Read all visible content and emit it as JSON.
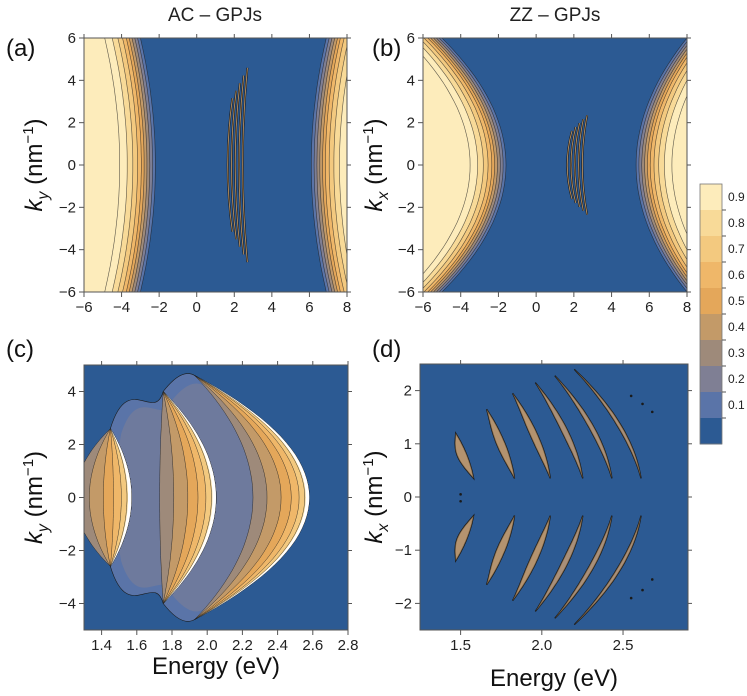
{
  "colors": {
    "background": "#2c5a93",
    "levels": [
      "#2c5a93",
      "#5a74a8",
      "#7f7f94",
      "#9e8a7a",
      "#c39a68",
      "#e4a75a",
      "#efb769",
      "#f3c97f",
      "#f8da98",
      "#fdecbb"
    ],
    "line": "#1a1a1a"
  },
  "chart_data": [
    {
      "panel": "(a)",
      "title": "AC – GPJs",
      "type": "heatmap",
      "xlabel": "",
      "ylabel_base": "k",
      "ylabel_sub": "y",
      "ylabel_unit": " (nm",
      "xlim": [
        -6,
        8
      ],
      "ylim": [
        -6,
        6
      ],
      "xticks": [
        -6,
        -4,
        -2,
        0,
        2,
        4,
        6,
        8
      ],
      "yticks": [
        -6,
        -4,
        -2,
        0,
        2,
        4,
        6
      ],
      "tick_labels_x": [
        "−6",
        "−4",
        "−2",
        "0",
        "2",
        "4",
        "6",
        "8"
      ],
      "tick_labels_y": [
        "−6",
        "−4",
        "−2",
        "0",
        "2",
        "4",
        "6"
      ],
      "features": [
        {
          "kind": "left-region",
          "edge_at_ky0": -2.2,
          "edge_at_kymax": -3.0,
          "max_value": 0.95
        },
        {
          "kind": "right-region",
          "edge_at_ky0": 6.1,
          "edge_at_kymax": 6.9,
          "max_value": 0.95
        },
        {
          "kind": "narrow-arcs",
          "center_e": 2.0,
          "half_width": 4.5
        }
      ]
    },
    {
      "panel": "(b)",
      "title": "ZZ – GPJs",
      "type": "heatmap",
      "xlabel": "",
      "ylabel_base": "k",
      "ylabel_sub": "x",
      "ylabel_unit": " (nm",
      "xlim": [
        -6,
        8
      ],
      "ylim": [
        -6,
        6
      ],
      "xticks": [
        -6,
        -4,
        -2,
        0,
        2,
        4,
        6,
        8
      ],
      "yticks": [
        -6,
        -4,
        -2,
        0,
        2,
        4,
        6
      ],
      "tick_labels_x": [
        "−6",
        "−4",
        "−2",
        "0",
        "2",
        "4",
        "6",
        "8"
      ],
      "tick_labels_y": [
        "−6",
        "−4",
        "−2",
        "0",
        "2",
        "4",
        "6"
      ],
      "features": [
        {
          "kind": "left-region",
          "edge_at_ky0": -1.6,
          "edge_at_kymax": -5.0,
          "max_value": 0.95
        },
        {
          "kind": "right-region",
          "edge_at_ky0": 5.3,
          "edge_at_kymax": 8.0,
          "max_value": 0.9
        },
        {
          "kind": "narrow-arcs",
          "center_e": 2.0,
          "half_width": 2.3
        }
      ]
    },
    {
      "panel": "(c)",
      "type": "heatmap",
      "xlabel": "Energy (eV)",
      "ylabel_base": "k",
      "ylabel_sub": "y",
      "ylabel_unit": " (nm",
      "xlim": [
        1.3,
        2.8
      ],
      "ylim": [
        -5,
        5
      ],
      "xticks": [
        1.4,
        1.6,
        1.8,
        2.0,
        2.2,
        2.4,
        2.6,
        2.8
      ],
      "yticks": [
        -4,
        -2,
        0,
        2,
        4
      ],
      "tick_labels_x": [
        "1.4",
        "1.6",
        "1.8",
        "2.0",
        "2.2",
        "2.4",
        "2.6",
        "2.8"
      ],
      "tick_labels_y": [
        "−4",
        "−2",
        "0",
        "2",
        "4"
      ],
      "bands": [
        {
          "e0": 1.45,
          "apex": 1.57,
          "ymax": 2.6
        },
        {
          "e0": 1.75,
          "apex": 2.05,
          "ymax": 4.0
        },
        {
          "e0": 1.93,
          "apex": 2.58,
          "ymax": 4.6
        }
      ]
    },
    {
      "panel": "(d)",
      "type": "heatmap",
      "xlabel": "Energy (eV)",
      "ylabel_base": "k",
      "ylabel_sub": "x",
      "ylabel_unit": " (nm",
      "xlim": [
        1.25,
        2.9
      ],
      "ylim": [
        -2.5,
        2.5
      ],
      "xticks": [
        1.5,
        2.0,
        2.5
      ],
      "yticks": [
        -2,
        -1,
        0,
        1,
        2
      ],
      "tick_labels_x": [
        "1.5",
        "2.0",
        "2.5"
      ],
      "tick_labels_y": [
        "−2",
        "−1",
        "0",
        "1",
        "2"
      ],
      "bands": [
        {
          "e0": 1.47,
          "apex": 1.36,
          "ymax": 1.2
        },
        {
          "e0": 1.66,
          "apex": 1.47,
          "ymax": 1.65
        },
        {
          "e0": 1.82,
          "apex": 1.58,
          "ymax": 1.95
        },
        {
          "e0": 1.96,
          "apex": 1.7,
          "ymax": 2.15
        },
        {
          "e0": 2.08,
          "apex": 1.82,
          "ymax": 2.28
        },
        {
          "e0": 2.2,
          "apex": 1.92,
          "ymax": 2.4
        }
      ]
    }
  ],
  "colorbar": {
    "ticks": [
      "0.9",
      "0.8",
      "0.7",
      "0.6",
      "0.5",
      "0.4",
      "0.3",
      "0.2",
      "0.1"
    ],
    "levels": 10
  },
  "superscript": "−1",
  "close_paren": ")"
}
